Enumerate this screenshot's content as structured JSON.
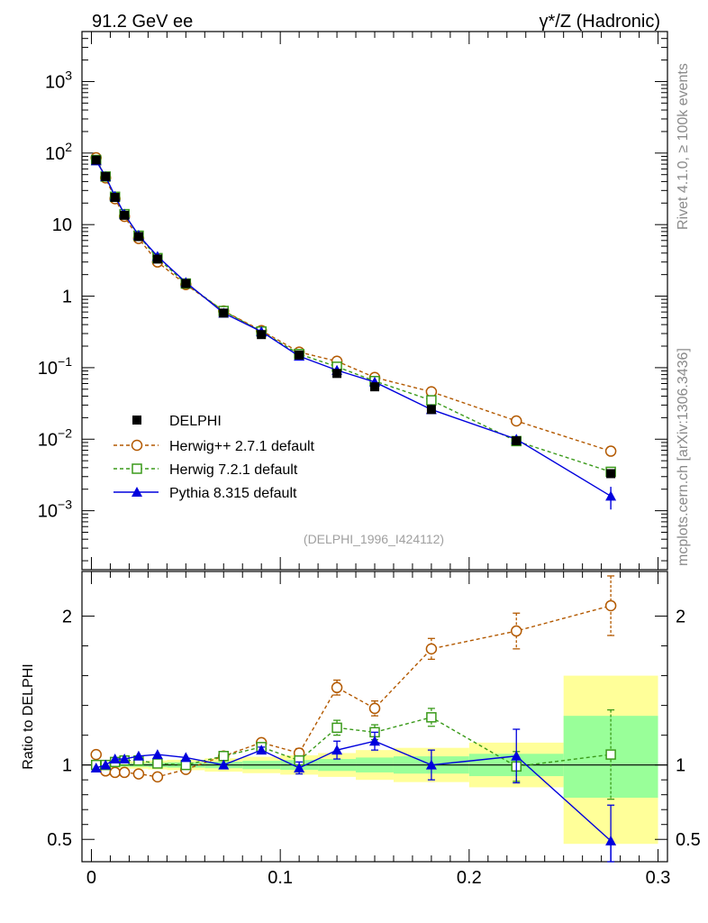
{
  "header": {
    "left_title": "91.2 GeV ee",
    "right_title_prefix": "γ*/Z",
    "right_title_suffix": " (Hadronic)"
  },
  "side_labels": {
    "rivet": "Rivet 4.1.0, ≥ 100k events",
    "mcplots": "mcplots.cern.ch [arXiv:1306.3436]"
  },
  "watermark": "(DELPHI_1996_I424112)",
  "colors": {
    "data": "#000000",
    "herwigpp": "#b35900",
    "herwig7": "#3a9a1a",
    "pythia": "#0000dd",
    "band_outer": "#ffff99",
    "band_inner": "#99ff99"
  },
  "legend": [
    {
      "key": "data",
      "label": "DELPHI"
    },
    {
      "key": "herwigpp",
      "label": "Herwig++ 2.7.1 default"
    },
    {
      "key": "herwig7",
      "label": "Herwig 7.2.1 default"
    },
    {
      "key": "pythia",
      "label": "Pythia 8.315 default"
    }
  ],
  "chart_data": [
    {
      "type": "scatter",
      "panel": "main",
      "yscale": "log",
      "xlim": [
        -0.005,
        0.305
      ],
      "ylim": [
        0.00015,
        5000
      ],
      "y_ticks": [
        {
          "v": 1000,
          "base": "10",
          "exp": "3"
        },
        {
          "v": 100,
          "base": "10",
          "exp": "2"
        },
        {
          "v": 10,
          "base": "10",
          "exp": ""
        },
        {
          "v": 1,
          "base": "1",
          "exp": ""
        },
        {
          "v": 0.1,
          "base": "10",
          "exp": "−1"
        },
        {
          "v": 0.01,
          "base": "10",
          "exp": "−2"
        },
        {
          "v": 0.001,
          "base": "10",
          "exp": "−3"
        }
      ],
      "x": [
        0.0025,
        0.0075,
        0.0125,
        0.0175,
        0.025,
        0.035,
        0.05,
        0.07,
        0.09,
        0.11,
        0.13,
        0.15,
        0.18,
        0.225,
        0.275
      ],
      "series": [
        {
          "name": "DELPHI",
          "key": "data",
          "marker": "square-filled",
          "values": [
            80,
            47,
            24,
            13.5,
            6.8,
            3.3,
            1.5,
            0.58,
            0.29,
            0.15,
            0.083,
            0.054,
            0.026,
            0.0095,
            0.0033
          ]
        },
        {
          "name": "Herwig++ 2.7.1 default",
          "key": "herwigpp",
          "marker": "circle-open",
          "dash": true,
          "values": [
            86,
            45,
            23,
            13,
            6.4,
            3.0,
            1.45,
            0.62,
            0.33,
            0.165,
            0.123,
            0.073,
            0.046,
            0.018,
            0.0068
          ]
        },
        {
          "name": "Herwig 7.2.1 default",
          "key": "herwig7",
          "marker": "square-open",
          "dash": true,
          "values": [
            80,
            47,
            24.5,
            14,
            7.0,
            3.4,
            1.5,
            0.62,
            0.32,
            0.155,
            0.103,
            0.065,
            0.035,
            0.0094,
            0.0035
          ]
        },
        {
          "name": "Pythia 8.315 default",
          "key": "pythia",
          "marker": "triangle-filled",
          "dash": false,
          "values": [
            78,
            47,
            25,
            14,
            7.1,
            3.6,
            1.56,
            0.58,
            0.32,
            0.145,
            0.092,
            0.063,
            0.026,
            0.01,
            0.0016
          ]
        }
      ]
    },
    {
      "type": "scatter",
      "panel": "ratio",
      "ylabel": "Ratio to DELPHI",
      "xlim": [
        -0.005,
        0.305
      ],
      "ylim": [
        0.35,
        2.3
      ],
      "y_ticks": [
        0.5,
        1,
        2
      ],
      "y_tick_labels": [
        "0.5",
        "1",
        "2"
      ],
      "x_ticks": [
        0,
        0.1,
        0.2,
        0.3
      ],
      "x_tick_labels": [
        "0",
        "0.1",
        "0.2",
        "0.3"
      ],
      "x": [
        0.0025,
        0.0075,
        0.0125,
        0.0175,
        0.025,
        0.035,
        0.05,
        0.07,
        0.09,
        0.11,
        0.13,
        0.15,
        0.18,
        0.225,
        0.275
      ],
      "bands": [
        {
          "x0": 0.0,
          "x1": 0.005,
          "outer": [
            0.98,
            1.02
          ],
          "inner": [
            0.99,
            1.01
          ]
        },
        {
          "x0": 0.005,
          "x1": 0.01,
          "outer": [
            0.98,
            1.02
          ],
          "inner": [
            0.99,
            1.01
          ]
        },
        {
          "x0": 0.01,
          "x1": 0.015,
          "outer": [
            0.98,
            1.02
          ],
          "inner": [
            0.99,
            1.01
          ]
        },
        {
          "x0": 0.015,
          "x1": 0.02,
          "outer": [
            0.98,
            1.02
          ],
          "inner": [
            0.99,
            1.01
          ]
        },
        {
          "x0": 0.02,
          "x1": 0.03,
          "outer": [
            0.975,
            1.025
          ],
          "inner": [
            0.988,
            1.012
          ]
        },
        {
          "x0": 0.03,
          "x1": 0.04,
          "outer": [
            0.97,
            1.03
          ],
          "inner": [
            0.985,
            1.015
          ]
        },
        {
          "x0": 0.04,
          "x1": 0.06,
          "outer": [
            0.965,
            1.035
          ],
          "inner": [
            0.982,
            1.018
          ]
        },
        {
          "x0": 0.06,
          "x1": 0.08,
          "outer": [
            0.955,
            1.045
          ],
          "inner": [
            0.978,
            1.022
          ]
        },
        {
          "x0": 0.08,
          "x1": 0.1,
          "outer": [
            0.945,
            1.055
          ],
          "inner": [
            0.972,
            1.028
          ]
        },
        {
          "x0": 0.1,
          "x1": 0.12,
          "outer": [
            0.935,
            1.065
          ],
          "inner": [
            0.967,
            1.033
          ]
        },
        {
          "x0": 0.12,
          "x1": 0.14,
          "outer": [
            0.92,
            1.08
          ],
          "inner": [
            0.96,
            1.04
          ]
        },
        {
          "x0": 0.14,
          "x1": 0.16,
          "outer": [
            0.9,
            1.1
          ],
          "inner": [
            0.95,
            1.05
          ]
        },
        {
          "x0": 0.16,
          "x1": 0.2,
          "outer": [
            0.885,
            1.115
          ],
          "inner": [
            0.942,
            1.058
          ]
        },
        {
          "x0": 0.2,
          "x1": 0.25,
          "outer": [
            0.85,
            1.15
          ],
          "inner": [
            0.925,
            1.075
          ]
        },
        {
          "x0": 0.25,
          "x1": 0.3,
          "outer": [
            0.47,
            1.6
          ],
          "inner": [
            0.78,
            1.33
          ]
        }
      ],
      "series": [
        {
          "name": "Herwig++ 2.7.1 default",
          "key": "herwigpp",
          "marker": "circle-open",
          "dash": true,
          "values": [
            1.07,
            0.96,
            0.95,
            0.95,
            0.94,
            0.92,
            0.97,
            1.06,
            1.15,
            1.08,
            1.52,
            1.38,
            1.78,
            1.9,
            2.07
          ],
          "errors": [
            0.0,
            0.0,
            0.0,
            0.0,
            0.0,
            0.0,
            0.0,
            0.0,
            0.02,
            0.03,
            0.05,
            0.05,
            0.07,
            0.12,
            0.2
          ]
        },
        {
          "name": "Herwig 7.2.1 default",
          "key": "herwig7",
          "marker": "square-open",
          "dash": true,
          "values": [
            1.0,
            1.0,
            1.02,
            1.03,
            1.03,
            1.01,
            1.0,
            1.06,
            1.12,
            1.03,
            1.25,
            1.22,
            1.32,
            0.99,
            1.07
          ],
          "errors": [
            0.0,
            0.0,
            0.0,
            0.0,
            0.0,
            0.0,
            0.0,
            0.0,
            0.02,
            0.03,
            0.05,
            0.05,
            0.06,
            0.1,
            0.3
          ]
        },
        {
          "name": "Pythia 8.315 default",
          "key": "pythia",
          "marker": "triangle-filled",
          "dash": false,
          "values": [
            0.98,
            1.0,
            1.04,
            1.04,
            1.06,
            1.07,
            1.05,
            1.0,
            1.1,
            0.98,
            1.1,
            1.16,
            1.0,
            1.06,
            0.49
          ],
          "errors": [
            0.0,
            0.0,
            0.0,
            0.0,
            0.0,
            0.0,
            0.0,
            0.0,
            0.02,
            0.04,
            0.06,
            0.06,
            0.1,
            0.18,
            0.24
          ]
        }
      ]
    }
  ]
}
